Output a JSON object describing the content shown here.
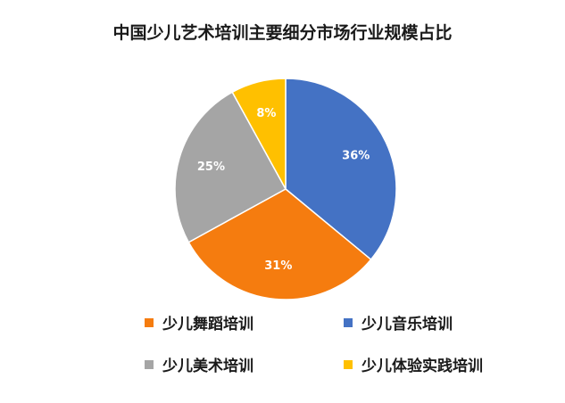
{
  "chart_data": {
    "type": "pie",
    "title": "中国少儿艺术培训主要细分市场行业规模占比",
    "categories": [
      "少儿音乐培训",
      "少儿舞蹈培训",
      "少儿美术培训",
      "少儿体验实践培训"
    ],
    "values": [
      36,
      31,
      25,
      8
    ],
    "labels": [
      "36%",
      "31%",
      "25%",
      "8%"
    ],
    "colors": [
      "#4472C4",
      "#F57C0F",
      "#A5A5A5",
      "#FFC000"
    ],
    "legend": {
      "placement": "bottom",
      "order": [
        "少儿舞蹈培训",
        "少儿音乐培训",
        "少儿美术培训",
        "少儿体验实践培训"
      ]
    }
  }
}
